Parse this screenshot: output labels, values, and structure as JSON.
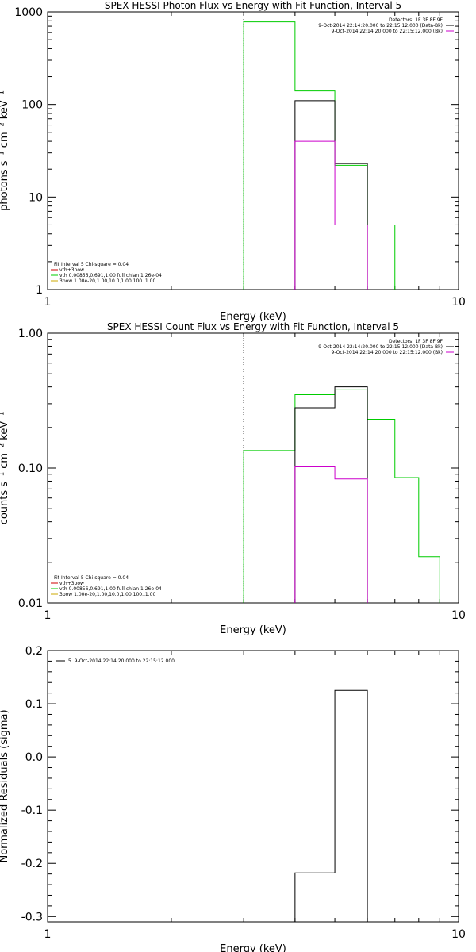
{
  "chart_data": [
    {
      "type": "line",
      "title": "SPEX HESSI Photon Flux vs Energy with Fit Function, Interval 5",
      "xlabel": "Energy (keV)",
      "ylabel": "photons s⁻¹ cm⁻² keV⁻¹",
      "xscale": "log",
      "yscale": "log",
      "xlim": [
        1,
        10
      ],
      "ylim": [
        1,
        1000
      ],
      "xticks": [
        "1",
        "10"
      ],
      "yticks": [
        "1",
        "10",
        "100",
        "1000"
      ],
      "vline": 3,
      "legend_top_right": [
        {
          "text": "Detectors: 1F 3F 8F 9F",
          "color": "#000000"
        },
        {
          "text": "9-Oct-2014 22:14:20.000 to 22:15:12.000 (Data-Bk)",
          "color": "#000000"
        },
        {
          "text": "9-Oct-2014 22:14:20.000 to 22:15:12.000 (Bk)",
          "color": "#cc00cc"
        }
      ],
      "legend_bottom_left": [
        {
          "text": "Fit Interval 5   Chi-square = 0.04",
          "color": "#000000"
        },
        {
          "text": "vth+3pow",
          "color": "#cc0000"
        },
        {
          "text": "vth 0.00856,0.691,1.00  full chian 1.26e-04",
          "color": "#00cc00"
        },
        {
          "text": "3pow 1.00e-20,1.00,10.0,1.00,100.,1.00",
          "color": "#ccaa00"
        }
      ],
      "series": [
        {
          "color": "#00cc00",
          "edges": [
            3,
            4,
            5,
            6,
            7
          ],
          "values": [
            780,
            140,
            22,
            5
          ]
        },
        {
          "color": "#000000",
          "edges": [
            4,
            5,
            6
          ],
          "values": [
            110,
            23
          ]
        },
        {
          "color": "#cc00cc",
          "edges": [
            4,
            5,
            6
          ],
          "values": [
            40,
            5
          ]
        }
      ]
    },
    {
      "type": "line",
      "title": "SPEX HESSI Count Flux vs Energy with Fit Function, Interval 5",
      "xlabel": "Energy (keV)",
      "ylabel": "counts s⁻¹ cm⁻² keV⁻¹",
      "xscale": "log",
      "yscale": "log",
      "xlim": [
        1,
        10
      ],
      "ylim": [
        0.01,
        1.0
      ],
      "xticks": [
        "1",
        "10"
      ],
      "yticks": [
        "0.01",
        "0.10",
        "1.00"
      ],
      "vline": 3,
      "legend_top_right": [
        {
          "text": "Detectors: 1F 3F 8F 9F",
          "color": "#000000"
        },
        {
          "text": "9-Oct-2014 22:14:20.000 to 22:15:12.000 (Data-Bk)",
          "color": "#000000"
        },
        {
          "text": "9-Oct-2014 22:14:20.000 to 22:15:12.000 (Bk)",
          "color": "#cc00cc"
        }
      ],
      "legend_bottom_left": [
        {
          "text": "Fit Interval 5   Chi-square = 0.04",
          "color": "#000000"
        },
        {
          "text": "vth+3pow",
          "color": "#cc0000"
        },
        {
          "text": "vth 0.00856,0.691,1.00  full chian 1.26e-04",
          "color": "#00cc00"
        },
        {
          "text": "3pow 1.00e-20,1.00,10.0,1.00,100.,1.00",
          "color": "#ccaa00"
        }
      ],
      "series": [
        {
          "color": "#00cc00",
          "edges": [
            3,
            4,
            5,
            6,
            7,
            8,
            9
          ],
          "values": [
            0.135,
            0.35,
            0.38,
            0.23,
            0.085,
            0.022
          ]
        },
        {
          "color": "#000000",
          "edges": [
            4,
            5,
            6
          ],
          "values": [
            0.28,
            0.4
          ]
        },
        {
          "color": "#cc00cc",
          "edges": [
            4,
            5,
            6
          ],
          "values": [
            0.102,
            0.083
          ]
        }
      ]
    },
    {
      "type": "line",
      "title": "",
      "xlabel": "Energy (keV)",
      "ylabel": "Normalized Residuals (sigma)",
      "xscale": "log",
      "yscale": "linear",
      "xlim": [
        1,
        10
      ],
      "ylim": [
        -0.31,
        0.2
      ],
      "xticks": [
        "1",
        "10"
      ],
      "yticks": [
        "0.2",
        "0.1",
        "0.0",
        "-0.1",
        "-0.2",
        "-0.3"
      ],
      "vline": null,
      "legend_top_right": [],
      "legend_bottom_left": [],
      "legend_top_left": [
        {
          "text": "5.  9-Oct-2014 22:14:20.000 to 22:15:12.000",
          "color": "#000000"
        }
      ],
      "series": [
        {
          "color": "#000000",
          "edges": [
            4,
            5,
            6
          ],
          "values": [
            -0.218,
            0.125
          ]
        }
      ]
    }
  ]
}
